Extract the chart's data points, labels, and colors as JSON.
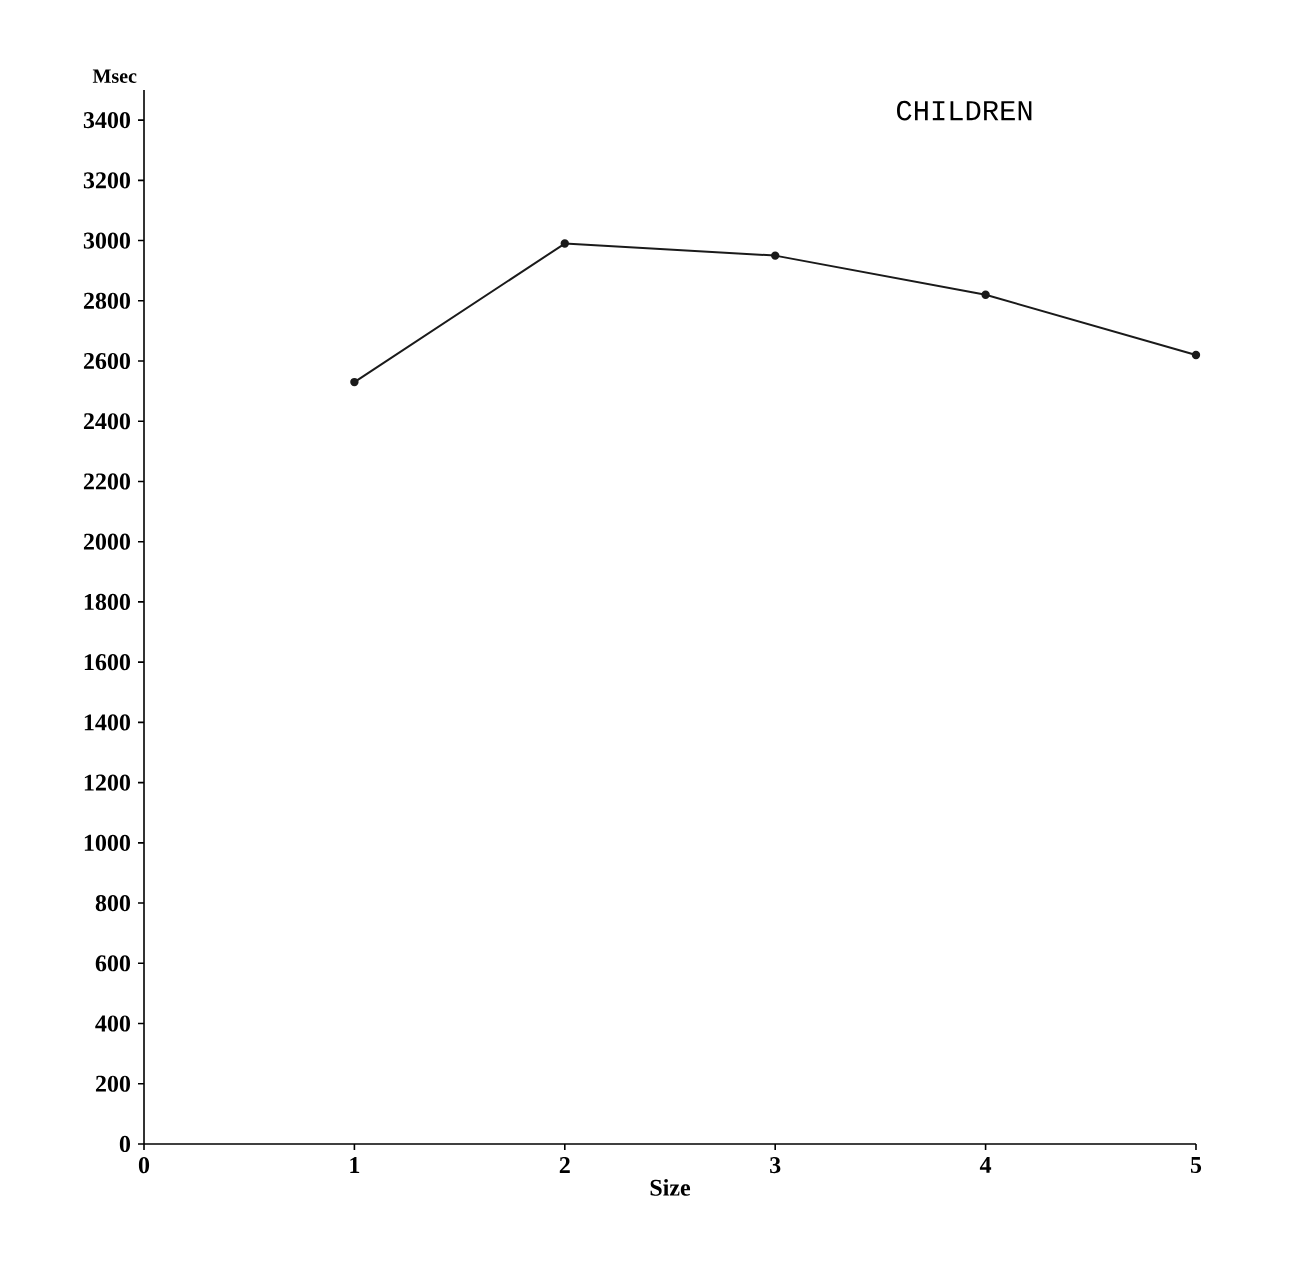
{
  "chart_data": {
    "type": "line",
    "title": "CHILDREN",
    "xlabel": "Size",
    "ylabel": "Msec",
    "x": [
      1,
      2,
      3,
      4,
      5
    ],
    "series": [
      {
        "color": "#1a1a1a",
        "values": [
          2530,
          2990,
          2950,
          2820,
          2620
        ]
      }
    ],
    "xlim": [
      0,
      5
    ],
    "ylim": [
      0,
      3500
    ],
    "xticks": [
      0,
      1,
      2,
      3,
      4,
      5
    ],
    "yticks": [
      0,
      200,
      400,
      600,
      800,
      1000,
      1200,
      1400,
      1600,
      1800,
      2000,
      2200,
      2400,
      2600,
      2800,
      3000,
      3200,
      3400
    ],
    "marker": "circle",
    "line_style": "solid"
  }
}
